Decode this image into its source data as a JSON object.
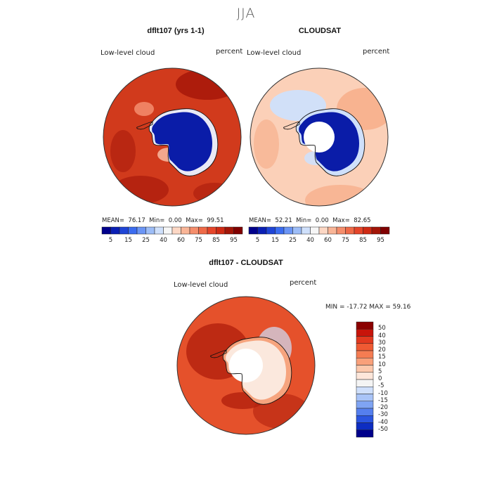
{
  "title": "JJA",
  "panels": {
    "model": {
      "title": "dflt107 (yrs 1-1)",
      "field_label": "Low-level cloud",
      "units_label": "percent",
      "mean_label": "MEAN=",
      "mean": "76.17",
      "min_label": "Min=",
      "min": "0.00",
      "max_label": "Max=",
      "max": "99.51"
    },
    "obs": {
      "title": "CLOUDSAT",
      "field_label": "Low-level cloud",
      "units_label": "percent",
      "mean_label": "MEAN=",
      "mean": "52.21",
      "min_label": "Min=",
      "min": "0.00",
      "max_label": "Max=",
      "max": "82.65"
    },
    "diff": {
      "title": "dflt107 - CLOUDSAT",
      "field_label": "Low-level cloud",
      "units_label": "percent",
      "minmax_text": "MIN = -17.72 MAX =  59.16"
    }
  },
  "colorbar_abs": {
    "ticks": [
      "5",
      "15",
      "25",
      "40",
      "60",
      "75",
      "85",
      "95"
    ],
    "colors": [
      "#00008b",
      "#0a1fb4",
      "#1f45d6",
      "#3b6cf0",
      "#6b95f5",
      "#9dbdf7",
      "#cfe0fb",
      "#f6f6f6",
      "#fcd7c4",
      "#f9b597",
      "#f58e6c",
      "#ef6a48",
      "#e5452a",
      "#cf2a14",
      "#a31507",
      "#800000"
    ]
  },
  "colorbar_diff": {
    "ticks": [
      "50",
      "40",
      "30",
      "20",
      "15",
      "10",
      "5",
      "0",
      "-5",
      "-10",
      "-15",
      "-20",
      "-30",
      "-40",
      "-50"
    ],
    "colors": [
      "#8b0000",
      "#c8140a",
      "#e2391f",
      "#ef5a33",
      "#f57c52",
      "#f9a07a",
      "#fcc8ac",
      "#fde6da",
      "#f4f4f4",
      "#cfdffb",
      "#a9c4f8",
      "#7fa4f3",
      "#557fee",
      "#2b55e0",
      "#0d2dc2",
      "#00008b"
    ]
  },
  "map_colors": {
    "model_ocean": "#d13a1c",
    "model_ocean_dark": "#a91a0b",
    "model_ice": "#0a1ca8",
    "obs_ocean": "#fbd0b8",
    "obs_ocean_mid": "#f7ab86",
    "obs_ice": "#0a1ca8",
    "diff_ocean": "#e5512b",
    "diff_ocean_dark": "#b3210e",
    "diff_ice": "#fbe8dd"
  }
}
